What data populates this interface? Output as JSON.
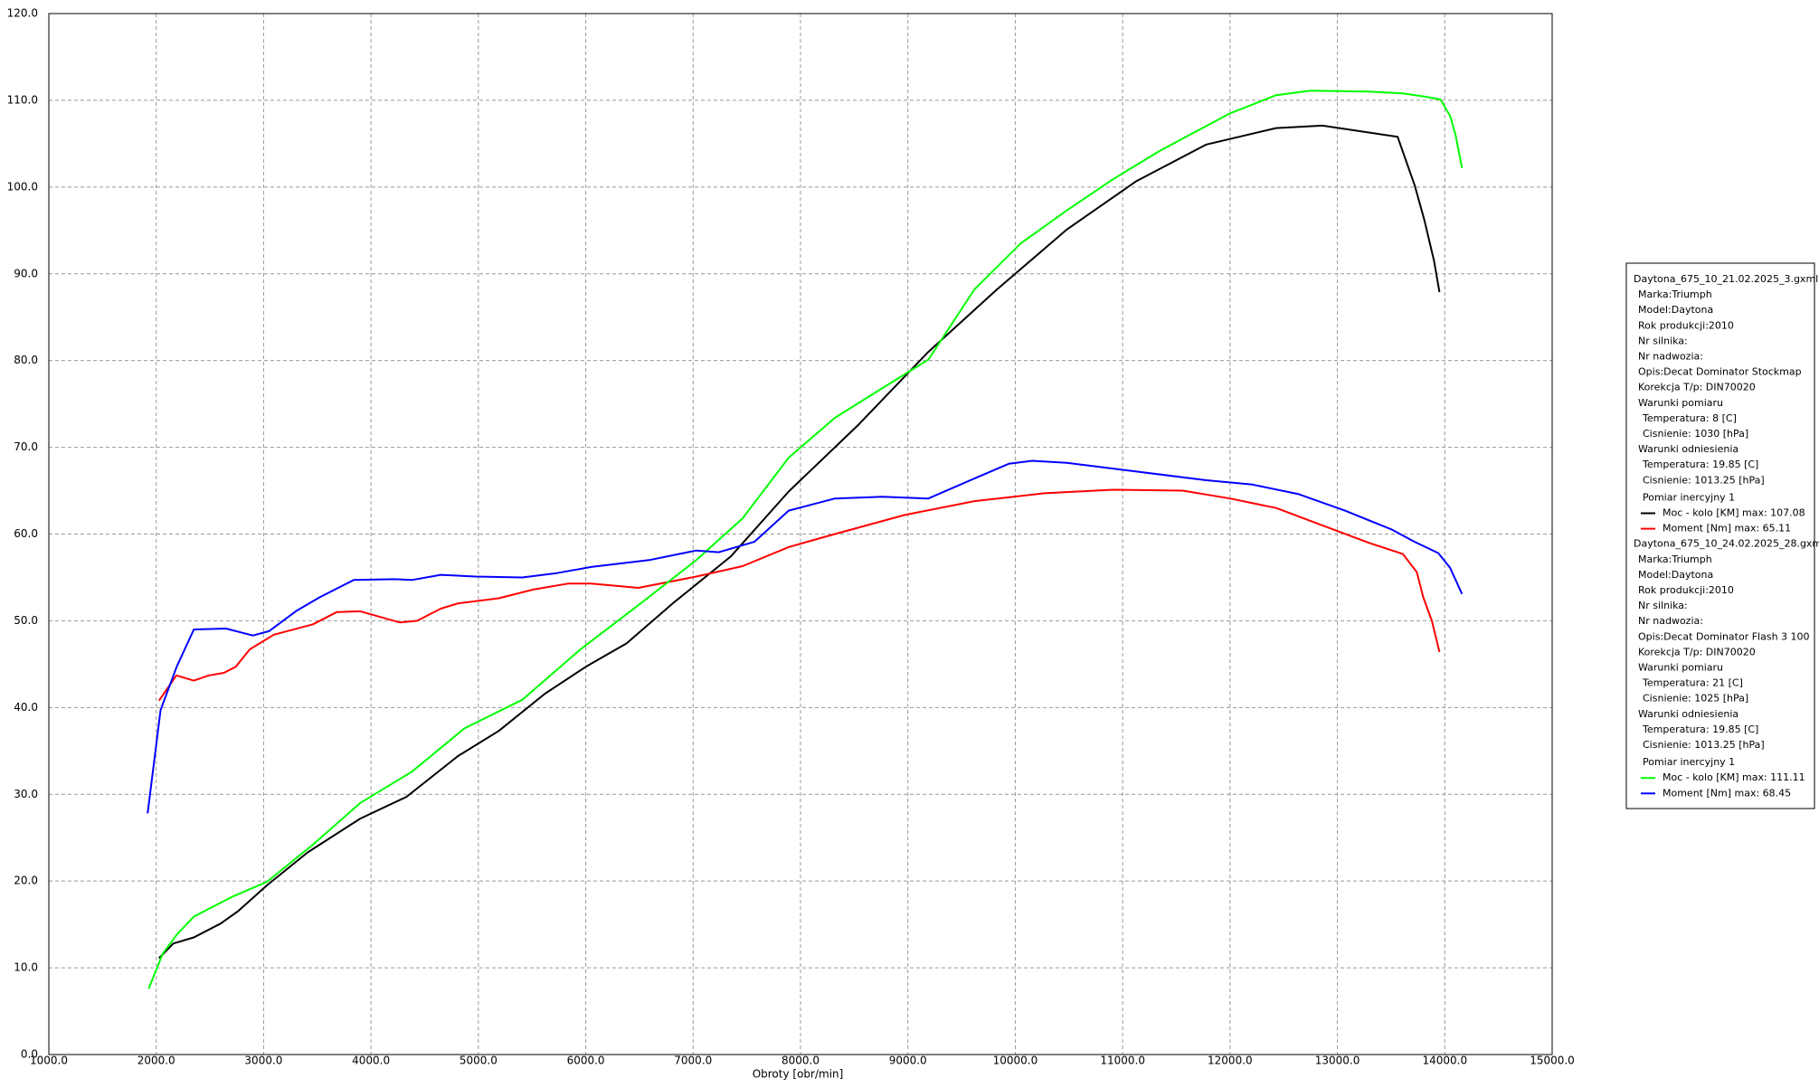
{
  "chart_data": {
    "type": "line",
    "x_label": "Obroty [obr/min]",
    "xlim": [
      1000,
      15000
    ],
    "xticks": [
      {
        "value": 1000,
        "label": "1000.0"
      },
      {
        "value": 2000,
        "label": "2000.0"
      },
      {
        "value": 3000,
        "label": "3000.0"
      },
      {
        "value": 4000,
        "label": "4000.0"
      },
      {
        "value": 5000,
        "label": "5000.0"
      },
      {
        "value": 6000,
        "label": "6000.0"
      },
      {
        "value": 7000,
        "label": "7000.0"
      },
      {
        "value": 8000,
        "label": "8000.0"
      },
      {
        "value": 9000,
        "label": "9000.0"
      },
      {
        "value": 10000,
        "label": "10000.0"
      },
      {
        "value": 11000,
        "label": "11000.0"
      },
      {
        "value": 12000,
        "label": "12000.0"
      },
      {
        "value": 13000,
        "label": "13000.0"
      },
      {
        "value": 14000,
        "label": "14000.0"
      },
      {
        "value": 15000,
        "label": "15000.0"
      }
    ],
    "ylim": [
      0,
      120
    ],
    "yticks": [
      {
        "value": 0,
        "label": "0.0"
      },
      {
        "value": 10,
        "label": "10.0"
      },
      {
        "value": 20,
        "label": "20.0"
      },
      {
        "value": 30,
        "label": "30.0"
      },
      {
        "value": 40,
        "label": "40.0"
      },
      {
        "value": 50,
        "label": "50.0"
      },
      {
        "value": 60,
        "label": "60.0"
      },
      {
        "value": 70,
        "label": "70.0"
      },
      {
        "value": 80,
        "label": "80.0"
      },
      {
        "value": 90,
        "label": "90.0"
      },
      {
        "value": 100,
        "label": "100.0"
      },
      {
        "value": 110,
        "label": "110.0"
      },
      {
        "value": 120,
        "label": "120.0"
      }
    ],
    "grid": true,
    "legend": "right",
    "runs": [
      {
        "file": "Daytona_675_10_21.02.2025_3.gxml",
        "info": [
          "Marka:Triumph",
          "Model:Daytona",
          "Rok produkcji:2010",
          "Nr silnika:",
          "Nr nadwozia:",
          "Opis:Decat Dominator Stockmap",
          "Korekcja T/p: DIN70020"
        ],
        "conditions": [
          {
            "title": "Warunki pomiaru",
            "items": [
              "Temperatura: 8 [C]",
              "Cisnienie: 1030 [hPa]"
            ]
          },
          {
            "title": "Warunki odniesienia",
            "items": [
              "Temperatura: 19.85 [C]",
              "Cisnienie: 1013.25 [hPa]"
            ]
          }
        ],
        "section": "Pomiar inercyjny 1"
      },
      {
        "file": "Daytona_675_10_24.02.2025_28.gxml",
        "info": [
          "Marka:Triumph",
          "Model:Daytona",
          "Rok produkcji:2010",
          "Nr silnika:",
          "Nr nadwozia:",
          "Opis:Decat Dominator Flash 3 100",
          "Korekcja T/p: DIN70020"
        ],
        "conditions": [
          {
            "title": "Warunki pomiaru",
            "items": [
              "Temperatura: 21 [C]",
              "Cisnienie: 1025 [hPa]"
            ]
          },
          {
            "title": "Warunki odniesienia",
            "items": [
              "Temperatura: 19.85 [C]",
              "Cisnienie: 1013.25 [hPa]"
            ]
          }
        ],
        "section": "Pomiar inercyjny 1"
      }
    ],
    "series": [
      {
        "name": "Moc - kolo [KM] max: 107.08",
        "color": "#000000",
        "x": [
          2026,
          2160,
          2350,
          2600,
          2760,
          3030,
          3410,
          3900,
          4330,
          4810,
          5190,
          5620,
          6000,
          6380,
          6810,
          7350,
          7890,
          8540,
          9190,
          9830,
          10480,
          11130,
          11780,
          12430,
          12860,
          13560,
          13720,
          13810,
          13900,
          13950
        ],
        "values": [
          11.1,
          12.8,
          13.5,
          15.1,
          16.5,
          19.5,
          23.3,
          27.2,
          29.7,
          34.4,
          37.3,
          41.6,
          44.7,
          47.4,
          52,
          57.4,
          64.9,
          72.6,
          81,
          88.2,
          95.1,
          100.7,
          104.9,
          106.8,
          107.08,
          105.8,
          100.2,
          96.2,
          91.5,
          87.9
        ]
      },
      {
        "name": "Moment [Nm] max: 65.11",
        "color": "#ff0000",
        "x": [
          2026,
          2188,
          2350,
          2490,
          2630,
          2740,
          2870,
          3095,
          3460,
          3680,
          3900,
          4270,
          4430,
          4650,
          4810,
          5190,
          5510,
          5840,
          6050,
          6490,
          7030,
          7460,
          7890,
          8320,
          8970,
          9620,
          10270,
          10910,
          11560,
          12000,
          12430,
          12860,
          13290,
          13610,
          13740,
          13800,
          13880,
          13950
        ],
        "values": [
          40.8,
          43.7,
          43.1,
          43.7,
          44,
          44.7,
          46.7,
          48.4,
          49.6,
          51,
          51.1,
          49.8,
          50,
          51.4,
          52,
          52.6,
          53.6,
          54.3,
          54.3,
          53.8,
          55.1,
          56.3,
          58.5,
          60,
          62.2,
          63.8,
          64.7,
          65.11,
          65.0,
          64.1,
          63,
          61,
          59,
          57.7,
          55.6,
          52.7,
          50,
          46.4
        ]
      },
      {
        "name": "Moc - kolo [KM] max: 111.11",
        "color": "#00ff00",
        "x": [
          1930,
          2060,
          2190,
          2350,
          2710,
          3030,
          3460,
          3900,
          4380,
          4870,
          5410,
          5950,
          6490,
          7030,
          7460,
          7890,
          8320,
          8760,
          9190,
          9620,
          10050,
          10480,
          10910,
          11350,
          12000,
          12430,
          12750,
          13290,
          13610,
          13830,
          13960,
          14050,
          14100,
          14160
        ],
        "values": [
          7.6,
          11.6,
          13.8,
          15.9,
          18.2,
          19.9,
          24.2,
          29,
          32.6,
          37.6,
          40.9,
          46.7,
          51.8,
          57,
          61.8,
          68.8,
          73.4,
          76.8,
          80.1,
          88.2,
          93.5,
          97.3,
          100.9,
          104.2,
          108.5,
          110.6,
          111.11,
          111.0,
          110.8,
          110.4,
          110.1,
          108.2,
          106,
          102.2
        ]
      },
      {
        "name": "Moment [Nm] max: 68.45",
        "color": "#0000ff",
        "x": [
          1920,
          2040,
          2190,
          2350,
          2650,
          2900,
          3050,
          3300,
          3520,
          3840,
          4220,
          4380,
          4650,
          4970,
          5410,
          5730,
          6050,
          6590,
          7030,
          7240,
          7570,
          7890,
          8320,
          8760,
          9190,
          9620,
          9940,
          10160,
          10480,
          11130,
          11780,
          12210,
          12640,
          13070,
          13510,
          13720,
          13940,
          14050,
          14160
        ],
        "values": [
          27.8,
          39.7,
          44.7,
          49,
          49.1,
          48.3,
          48.8,
          51.1,
          52.7,
          54.7,
          54.8,
          54.7,
          55.3,
          55.1,
          55,
          55.5,
          56.2,
          57,
          58.1,
          57.9,
          59.1,
          62.7,
          64.1,
          64.3,
          64.1,
          66.4,
          68.1,
          68.45,
          68.2,
          67.2,
          66.2,
          65.7,
          64.6,
          62.7,
          60.5,
          59.1,
          57.8,
          56.1,
          53.1
        ]
      }
    ]
  }
}
